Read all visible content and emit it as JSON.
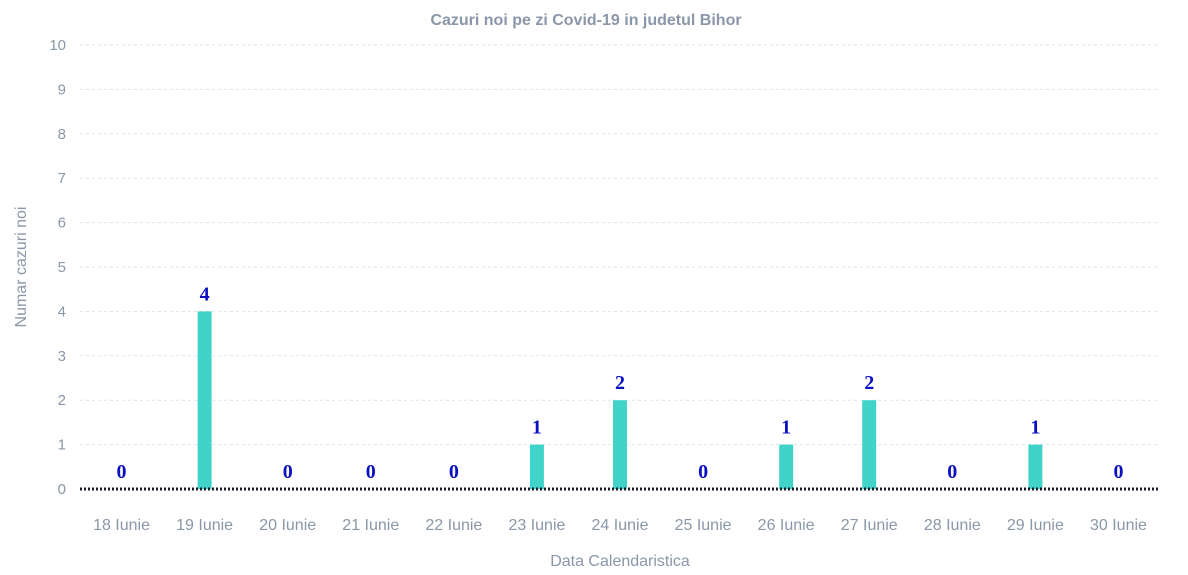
{
  "chart_data": {
    "type": "bar",
    "title": "Cazuri noi pe zi Covid-19 in judetul Bihor",
    "xlabel": "Data Calendaristica",
    "ylabel": "Numar cazuri noi",
    "categories": [
      "18 Iunie",
      "19 Iunie",
      "20 Iunie",
      "21 Iunie",
      "22 Iunie",
      "23 Iunie",
      "24 Iunie",
      "25 Iunie",
      "26 Iunie",
      "27 Iunie",
      "28 Iunie",
      "29 Iunie",
      "30 Iunie"
    ],
    "values": [
      0,
      4,
      0,
      0,
      0,
      1,
      2,
      0,
      1,
      2,
      0,
      1,
      0
    ],
    "ylim": [
      0,
      10
    ],
    "yticks": [
      0,
      1,
      2,
      3,
      4,
      5,
      6,
      7,
      8,
      9,
      10
    ],
    "grid": true,
    "data_labels": true,
    "colors": {
      "bar": "#40d3c9",
      "data_label": "#0a10c2",
      "text": "#8a97a8",
      "grid": "#dde3ea",
      "baseline": "#1b1b2a"
    }
  }
}
